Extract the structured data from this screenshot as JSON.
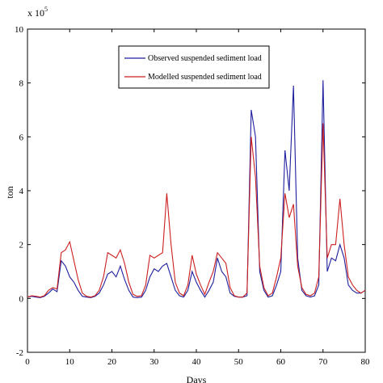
{
  "chart_data": {
    "type": "line",
    "title": "",
    "xlabel": "Days",
    "ylabel": "ton",
    "y_multiplier": "x 10",
    "y_exponent": "5",
    "xlim": [
      0,
      80
    ],
    "ylim": [
      -2,
      10
    ],
    "x_ticks": [
      0,
      10,
      20,
      30,
      40,
      50,
      60,
      70,
      80
    ],
    "y_ticks": [
      -2,
      0,
      2,
      4,
      6,
      8,
      10
    ],
    "grid": false,
    "legend_position": "top-center",
    "series": [
      {
        "name": "Observed suspended sediment load",
        "color": "#1f1f9e",
        "x": [
          0,
          1,
          2,
          3,
          4,
          5,
          6,
          7,
          8,
          9,
          10,
          11,
          12,
          13,
          14,
          15,
          16,
          17,
          18,
          19,
          20,
          21,
          22,
          23,
          24,
          25,
          26,
          27,
          28,
          29,
          30,
          31,
          32,
          33,
          34,
          35,
          36,
          37,
          38,
          39,
          40,
          41,
          42,
          43,
          44,
          45,
          46,
          47,
          48,
          49,
          50,
          51,
          52,
          53,
          54,
          55,
          56,
          57,
          58,
          59,
          60,
          61,
          62,
          63,
          64,
          65,
          66,
          67,
          68,
          69,
          70,
          71,
          72,
          73,
          74,
          75,
          76,
          77,
          78,
          79,
          80
        ],
        "values": [
          0.05,
          0.08,
          0.05,
          0.03,
          0.08,
          0.2,
          0.35,
          0.25,
          1.4,
          1.2,
          0.8,
          0.6,
          0.3,
          0.08,
          0.05,
          0.03,
          0.08,
          0.2,
          0.5,
          0.9,
          1.0,
          0.8,
          1.2,
          0.7,
          0.3,
          0.05,
          0.03,
          0.05,
          0.3,
          0.8,
          1.1,
          1.0,
          1.2,
          1.3,
          0.8,
          0.3,
          0.1,
          0.05,
          0.3,
          1.0,
          0.6,
          0.3,
          0.05,
          0.3,
          0.6,
          1.5,
          1.0,
          0.8,
          0.2,
          0.08,
          0.05,
          0.05,
          0.1,
          7.0,
          6.0,
          1.0,
          0.3,
          0.05,
          0.1,
          0.5,
          1.0,
          5.5,
          4.0,
          7.9,
          1.5,
          0.3,
          0.1,
          0.05,
          0.1,
          0.5,
          8.1,
          1.0,
          1.5,
          1.4,
          2.0,
          1.5,
          0.5,
          0.3,
          0.2,
          0.2,
          0.3
        ]
      },
      {
        "name": "Modelled suspended sediment load",
        "color": "#cc1f1f",
        "x": [
          0,
          1,
          2,
          3,
          4,
          5,
          6,
          7,
          8,
          9,
          10,
          11,
          12,
          13,
          14,
          15,
          16,
          17,
          18,
          19,
          20,
          21,
          22,
          23,
          24,
          25,
          26,
          27,
          28,
          29,
          30,
          31,
          32,
          33,
          34,
          35,
          36,
          37,
          38,
          39,
          40,
          41,
          42,
          43,
          44,
          45,
          46,
          47,
          48,
          49,
          50,
          51,
          52,
          53,
          54,
          55,
          56,
          57,
          58,
          59,
          60,
          61,
          62,
          63,
          64,
          65,
          66,
          67,
          68,
          69,
          70,
          71,
          72,
          73,
          74,
          75,
          76,
          77,
          78,
          79,
          80
        ],
        "values": [
          0.05,
          0.1,
          0.08,
          0.05,
          0.1,
          0.3,
          0.4,
          0.35,
          1.7,
          1.8,
          2.1,
          1.4,
          0.7,
          0.2,
          0.08,
          0.05,
          0.1,
          0.3,
          0.8,
          1.7,
          1.6,
          1.5,
          1.8,
          1.3,
          0.6,
          0.15,
          0.08,
          0.1,
          0.5,
          1.6,
          1.5,
          1.6,
          1.7,
          3.9,
          2.0,
          0.6,
          0.2,
          0.1,
          0.5,
          1.6,
          0.9,
          0.5,
          0.15,
          0.6,
          1.0,
          1.7,
          1.5,
          1.3,
          0.4,
          0.1,
          0.05,
          0.05,
          0.2,
          6.0,
          4.5,
          1.2,
          0.4,
          0.1,
          0.2,
          0.8,
          1.5,
          3.9,
          3.0,
          3.5,
          1.2,
          0.4,
          0.15,
          0.1,
          0.2,
          0.8,
          6.5,
          1.5,
          2.0,
          2.0,
          3.7,
          2.0,
          0.8,
          0.5,
          0.3,
          0.2,
          0.3
        ]
      }
    ]
  }
}
